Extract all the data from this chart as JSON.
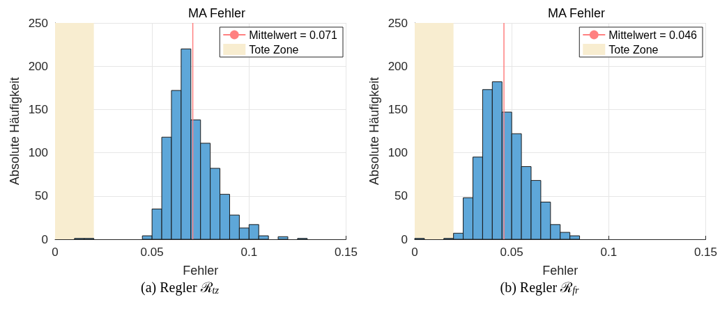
{
  "chart_data": [
    {
      "type": "histogram",
      "title": "MA Fehler",
      "xlabel": "Fehler",
      "ylabel": "Absolute Häufigkeit",
      "annotations": [
        "(a) Regler ℛ$_{tz}$"
      ],
      "bins": [
        0.01,
        0.015,
        0.02,
        0.025,
        0.03,
        0.035,
        0.04,
        0.045,
        0.05,
        0.055,
        0.06,
        0.065,
        0.07,
        0.075,
        0.08,
        0.085,
        0.09,
        0.095,
        0.1,
        0.105,
        0.11,
        0.115,
        0.12,
        0.125,
        0.13
      ],
      "values": [
        1,
        1,
        0,
        0,
        0,
        0,
        0,
        4,
        35,
        118,
        172,
        220,
        138,
        111,
        82,
        52,
        28,
        13,
        17,
        4,
        0,
        3,
        0,
        1
      ],
      "color": "#5ea7d9",
      "series": [
        {
          "type": "line",
          "name": "Mittelwert = 0.071",
          "color": "#ff8080",
          "x": [
            0.071,
            0.071
          ],
          "values": [
            0,
            250
          ]
        },
        {
          "type": "area",
          "name": "Tote Zone",
          "color": "#f8edd0",
          "x": [
            0,
            0.02
          ],
          "values": [
            250,
            250
          ]
        }
      ],
      "xlim": [
        0,
        0.15
      ],
      "xticks": [
        0,
        0.05,
        0.1,
        0.15
      ],
      "ylim": [
        0,
        250
      ],
      "yticks": [
        0,
        50,
        100,
        150,
        200,
        250
      ],
      "grid": true,
      "legend": "top right"
    },
    {
      "type": "histogram",
      "title": "MA Fehler",
      "xlabel": "Fehler",
      "ylabel": "Absolute Häufigkeit",
      "annotations": [
        "(b) Regler ℛ$_{fr}$"
      ],
      "bins": [
        0,
        0.005,
        0.01,
        0.015,
        0.02,
        0.025,
        0.03,
        0.035,
        0.04,
        0.045,
        0.05,
        0.055,
        0.06,
        0.065,
        0.07,
        0.075,
        0.08,
        0.085
      ],
      "values": [
        1,
        0,
        0,
        1,
        7,
        48,
        95,
        173,
        182,
        147,
        122,
        84,
        68,
        43,
        17,
        8,
        4
      ],
      "color": "#5ea7d9",
      "series": [
        {
          "type": "line",
          "name": "Mittelwert = 0.046",
          "color": "#ff8080",
          "x": [
            0.046,
            0.046
          ],
          "values": [
            0,
            250
          ]
        },
        {
          "type": "area",
          "name": "Tote Zone",
          "color": "#f8edd0",
          "x": [
            0,
            0.02
          ],
          "values": [
            250,
            250
          ]
        }
      ],
      "xlim": [
        0,
        0.15
      ],
      "xticks": [
        0,
        0.05,
        0.1,
        0.15
      ],
      "ylim": [
        0,
        250
      ],
      "yticks": [
        0,
        50,
        100,
        150,
        200,
        250
      ],
      "grid": true,
      "legend": "top right"
    }
  ]
}
